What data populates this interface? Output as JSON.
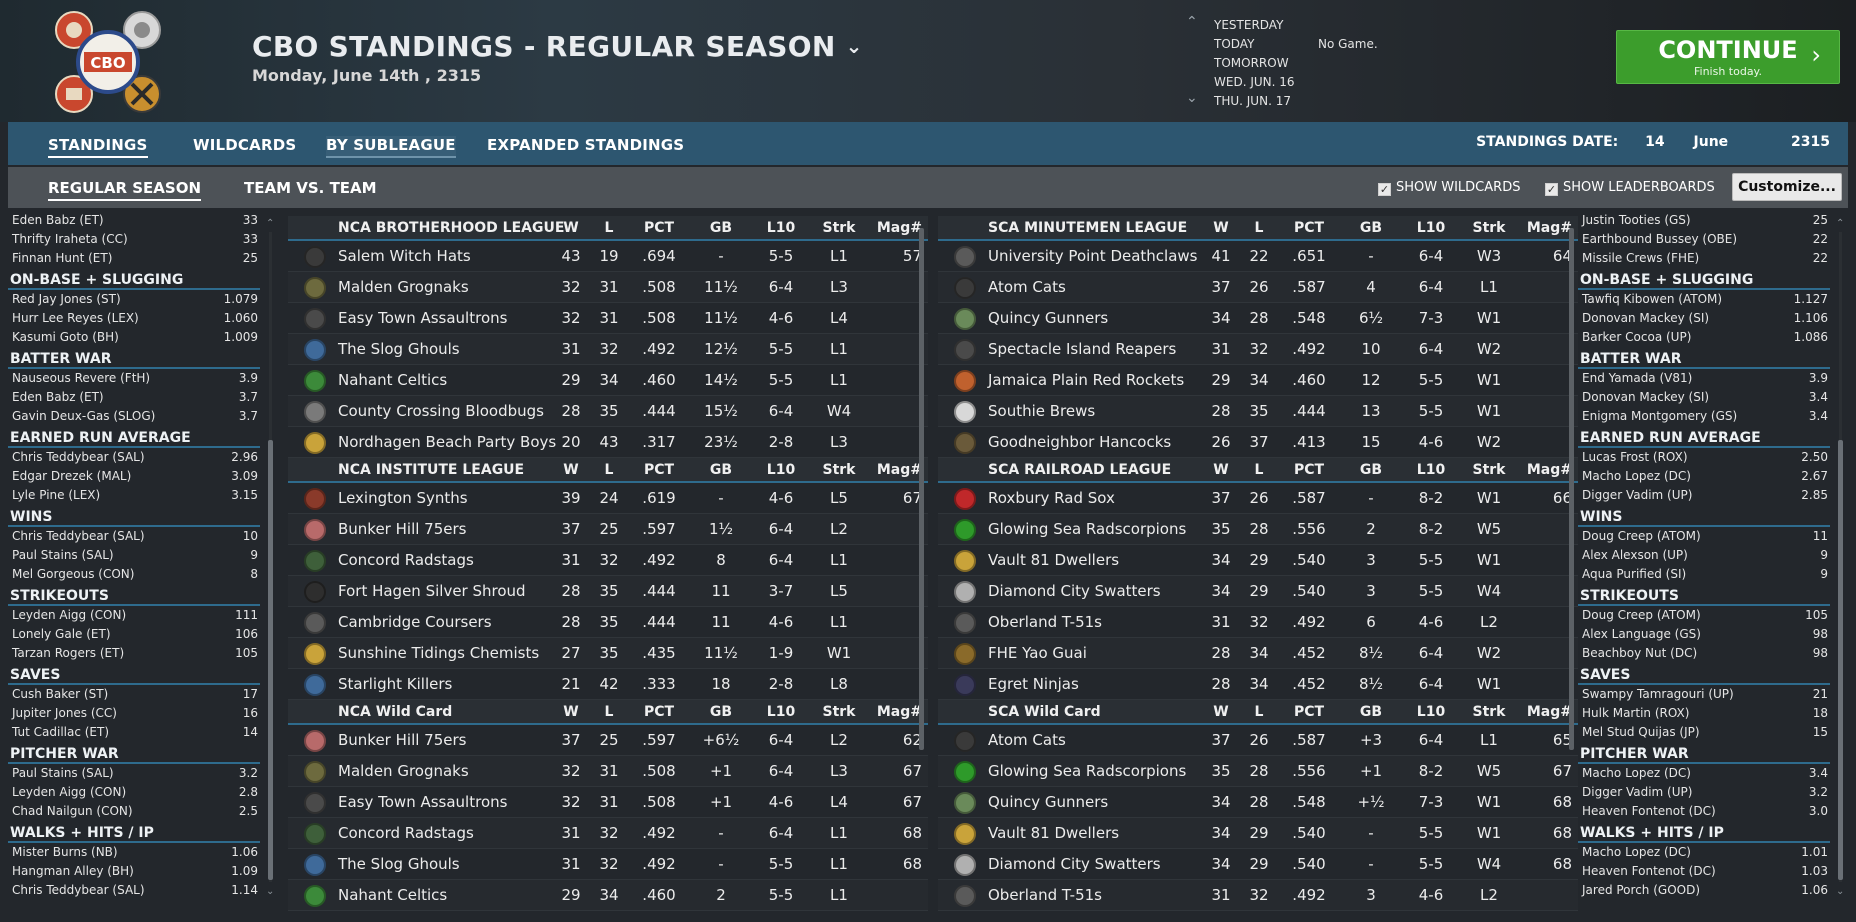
{
  "header": {
    "title": "CBO STANDINGS - REGULAR SEASON",
    "date_line": "Monday, June 14th , 2315",
    "nav_days": [
      "YESTERDAY",
      "TODAY",
      "TOMORROW",
      "WED. JUN. 16",
      "THU. JUN. 17"
    ],
    "no_game": "No Game.",
    "continue_label": "CONTINUE",
    "continue_sub": "Finish today.",
    "logo_text": "CBO"
  },
  "tabs": [
    "STANDINGS",
    "WILDCARDS",
    "BY SUBLEAGUE",
    "EXPANDED STANDINGS"
  ],
  "standings_date": {
    "label": "STANDINGS DATE:",
    "day": "14",
    "month": "June",
    "year": "2315"
  },
  "subtabs": [
    "REGULAR SEASON",
    "TEAM VS. TEAM"
  ],
  "options": {
    "show_wildcards": "SHOW WILDCARDS",
    "show_leaderboards": "SHOW LEADERBOARDS",
    "customize": "Customize..."
  },
  "columns": [
    "W",
    "L",
    "PCT",
    "GB",
    "L10",
    "Strk",
    "Mag#"
  ],
  "left_leaders": [
    {
      "title": "",
      "rows": [
        [
          "Eden Babz (ET)",
          "33"
        ],
        [
          "Thrifty Iraheta (CC)",
          "33"
        ],
        [
          "Finnan Hunt (ET)",
          "25"
        ]
      ]
    },
    {
      "title": "ON-BASE + SLUGGING",
      "rows": [
        [
          "Red Jay Jones (ST)",
          "1.079"
        ],
        [
          "Hurr Lee Reyes (LEX)",
          "1.060"
        ],
        [
          "Kasumi Goto (BH)",
          "1.009"
        ]
      ]
    },
    {
      "title": "BATTER WAR",
      "rows": [
        [
          "Nauseous Revere (FtH)",
          "3.9"
        ],
        [
          "Eden Babz (ET)",
          "3.7"
        ],
        [
          "Gavin Deux-Gas (SLOG)",
          "3.7"
        ]
      ]
    },
    {
      "title": "EARNED RUN AVERAGE",
      "rows": [
        [
          "Chris Teddybear (SAL)",
          "2.96"
        ],
        [
          "Edgar Drezek (MAL)",
          "3.09"
        ],
        [
          "Lyle Pine (LEX)",
          "3.15"
        ]
      ]
    },
    {
      "title": "WINS",
      "rows": [
        [
          "Chris Teddybear (SAL)",
          "10"
        ],
        [
          "Paul Stains (SAL)",
          "9"
        ],
        [
          "Mel Gorgeous (CON)",
          "8"
        ]
      ]
    },
    {
      "title": "STRIKEOUTS",
      "rows": [
        [
          "Leyden Aigg (CON)",
          "111"
        ],
        [
          "Lonely Gale (ET)",
          "106"
        ],
        [
          "Tarzan Rogers (ET)",
          "105"
        ]
      ]
    },
    {
      "title": "SAVES",
      "rows": [
        [
          "Cush Baker (ST)",
          "17"
        ],
        [
          "Jupiter Jones (CC)",
          "16"
        ],
        [
          "Tut Cadillac (ET)",
          "14"
        ]
      ]
    },
    {
      "title": "PITCHER WAR",
      "rows": [
        [
          "Paul Stains (SAL)",
          "3.2"
        ],
        [
          "Leyden Aigg (CON)",
          "2.8"
        ],
        [
          "Chad Nailgun (CON)",
          "2.5"
        ]
      ]
    },
    {
      "title": "WALKS + HITS / IP",
      "rows": [
        [
          "Mister Burns (NB)",
          "1.06"
        ],
        [
          "Hangman Alley (BH)",
          "1.09"
        ],
        [
          "Chris Teddybear (SAL)",
          "1.14"
        ]
      ]
    }
  ],
  "right_leaders": [
    {
      "title": "",
      "rows": [
        [
          "Justin Tooties (GS)",
          "25"
        ],
        [
          "Earthbound Bussey (OBE)",
          "22"
        ],
        [
          "Missile Crews (FHE)",
          "22"
        ]
      ]
    },
    {
      "title": "ON-BASE + SLUGGING",
      "rows": [
        [
          "Tawfiq Kibowen (ATOM)",
          "1.127"
        ],
        [
          "Donovan Mackey (SI)",
          "1.106"
        ],
        [
          "Barker Cocoa (UP)",
          "1.086"
        ]
      ]
    },
    {
      "title": "BATTER WAR",
      "rows": [
        [
          "End Yamada (V81)",
          "3.9"
        ],
        [
          "Donovan Mackey (SI)",
          "3.4"
        ],
        [
          "Enigma Montgomery (GS)",
          "3.4"
        ]
      ]
    },
    {
      "title": "EARNED RUN AVERAGE",
      "rows": [
        [
          "Lucas Frost (ROX)",
          "2.50"
        ],
        [
          "Macho Lopez (DC)",
          "2.67"
        ],
        [
          "Digger Vadim (UP)",
          "2.85"
        ]
      ]
    },
    {
      "title": "WINS",
      "rows": [
        [
          "Doug Creep (ATOM)",
          "11"
        ],
        [
          "Alex Alexson (UP)",
          "9"
        ],
        [
          "Aqua Purified (SI)",
          "9"
        ]
      ]
    },
    {
      "title": "STRIKEOUTS",
      "rows": [
        [
          "Doug Creep (ATOM)",
          "105"
        ],
        [
          "Alex Language (GS)",
          "98"
        ],
        [
          "Beachboy Nut (DC)",
          "98"
        ]
      ]
    },
    {
      "title": "SAVES",
      "rows": [
        [
          "Swampy Tamragouri (UP)",
          "21"
        ],
        [
          "Hulk Martin (ROX)",
          "18"
        ],
        [
          "Mel Stud Quijas (JP)",
          "15"
        ]
      ]
    },
    {
      "title": "PITCHER WAR",
      "rows": [
        [
          "Macho Lopez (DC)",
          "3.4"
        ],
        [
          "Digger Vadim (UP)",
          "3.2"
        ],
        [
          "Heaven Fontenot (DC)",
          "3.0"
        ]
      ]
    },
    {
      "title": "WALKS + HITS / IP",
      "rows": [
        [
          "Macho Lopez (DC)",
          "1.01"
        ],
        [
          "Heaven Fontenot (DC)",
          "1.03"
        ],
        [
          "Jared Porch (GOOD)",
          "1.06"
        ]
      ]
    }
  ],
  "left_tables": [
    {
      "title": "NCA BROTHERHOOD LEAGUE",
      "teams": [
        {
          "name": "Salem Witch Hats",
          "w": "43",
          "l": "19",
          "pct": ".694",
          "gb": "-",
          "l10": "5-5",
          "strk": "L1",
          "mag": "57",
          "color": "#3a3a3a"
        },
        {
          "name": "Malden Grognaks",
          "w": "32",
          "l": "31",
          "pct": ".508",
          "gb": "11½",
          "l10": "6-4",
          "strk": "L3",
          "mag": "",
          "color": "#6d6a3e"
        },
        {
          "name": "Easy Town Assaultrons",
          "w": "32",
          "l": "31",
          "pct": ".508",
          "gb": "11½",
          "l10": "4-6",
          "strk": "L4",
          "mag": "",
          "color": "#4a4a4a"
        },
        {
          "name": "The Slog Ghouls",
          "w": "31",
          "l": "32",
          "pct": ".492",
          "gb": "12½",
          "l10": "5-5",
          "strk": "L1",
          "mag": "",
          "color": "#3f6a9a"
        },
        {
          "name": "Nahant Celtics",
          "w": "29",
          "l": "34",
          "pct": ".460",
          "gb": "14½",
          "l10": "5-5",
          "strk": "L1",
          "mag": "",
          "color": "#3c8a3a"
        },
        {
          "name": "County Crossing Bloodbugs",
          "w": "28",
          "l": "35",
          "pct": ".444",
          "gb": "15½",
          "l10": "6-4",
          "strk": "W4",
          "mag": "",
          "color": "#7a7a7a"
        },
        {
          "name": "Nordhagen Beach Party Boys",
          "w": "20",
          "l": "43",
          "pct": ".317",
          "gb": "23½",
          "l10": "2-8",
          "strk": "L3",
          "mag": "",
          "color": "#c9a33a"
        }
      ]
    },
    {
      "title": "NCA INSTITUTE LEAGUE",
      "teams": [
        {
          "name": "Lexington Synths",
          "w": "39",
          "l": "24",
          "pct": ".619",
          "gb": "-",
          "l10": "4-6",
          "strk": "L5",
          "mag": "67",
          "color": "#8a3a2a"
        },
        {
          "name": "Bunker Hill 75ers",
          "w": "37",
          "l": "25",
          "pct": ".597",
          "gb": "1½",
          "l10": "6-4",
          "strk": "L2",
          "mag": "",
          "color": "#b86a6a"
        },
        {
          "name": "Concord Radstags",
          "w": "31",
          "l": "32",
          "pct": ".492",
          "gb": "8",
          "l10": "6-4",
          "strk": "L1",
          "mag": "",
          "color": "#3e5f3a"
        },
        {
          "name": "Fort Hagen Silver Shroud",
          "w": "28",
          "l": "35",
          "pct": ".444",
          "gb": "11",
          "l10": "3-7",
          "strk": "L5",
          "mag": "",
          "color": "#2e2e2e"
        },
        {
          "name": "Cambridge Coursers",
          "w": "28",
          "l": "35",
          "pct": ".444",
          "gb": "11",
          "l10": "4-6",
          "strk": "L1",
          "mag": "",
          "color": "#5a5a5a"
        },
        {
          "name": "Sunshine Tidings Chemists",
          "w": "27",
          "l": "35",
          "pct": ".435",
          "gb": "11½",
          "l10": "1-9",
          "strk": "W1",
          "mag": "",
          "color": "#c9a33a"
        },
        {
          "name": "Starlight Killers",
          "w": "21",
          "l": "42",
          "pct": ".333",
          "gb": "18",
          "l10": "2-8",
          "strk": "L8",
          "mag": "",
          "color": "#3f6a9a"
        }
      ]
    },
    {
      "title": "NCA  Wild Card",
      "teams": [
        {
          "name": "Bunker Hill 75ers",
          "w": "37",
          "l": "25",
          "pct": ".597",
          "gb": "+6½",
          "l10": "6-4",
          "strk": "L2",
          "mag": "62",
          "color": "#b86a6a"
        },
        {
          "name": "Malden Grognaks",
          "w": "32",
          "l": "31",
          "pct": ".508",
          "gb": "+1",
          "l10": "6-4",
          "strk": "L3",
          "mag": "67",
          "color": "#6d6a3e"
        },
        {
          "name": "Easy Town Assaultrons",
          "w": "32",
          "l": "31",
          "pct": ".508",
          "gb": "+1",
          "l10": "4-6",
          "strk": "L4",
          "mag": "67",
          "color": "#4a4a4a"
        },
        {
          "name": "Concord Radstags",
          "w": "31",
          "l": "32",
          "pct": ".492",
          "gb": "-",
          "l10": "6-4",
          "strk": "L1",
          "mag": "68",
          "color": "#3e5f3a"
        },
        {
          "name": "The Slog Ghouls",
          "w": "31",
          "l": "32",
          "pct": ".492",
          "gb": "-",
          "l10": "5-5",
          "strk": "L1",
          "mag": "68",
          "color": "#3f6a9a"
        },
        {
          "name": "Nahant Celtics",
          "w": "29",
          "l": "34",
          "pct": ".460",
          "gb": "2",
          "l10": "5-5",
          "strk": "L1",
          "mag": "",
          "color": "#3c8a3a"
        }
      ]
    }
  ],
  "right_tables": [
    {
      "title": "SCA MINUTEMEN LEAGUE",
      "teams": [
        {
          "name": "University Point Deathclaws",
          "w": "41",
          "l": "22",
          "pct": ".651",
          "gb": "-",
          "l10": "6-4",
          "strk": "W3",
          "mag": "64",
          "color": "#5a5a5a"
        },
        {
          "name": "Atom Cats",
          "w": "37",
          "l": "26",
          "pct": ".587",
          "gb": "4",
          "l10": "6-4",
          "strk": "L1",
          "mag": "",
          "color": "#3a3a3a"
        },
        {
          "name": "Quincy Gunners",
          "w": "34",
          "l": "28",
          "pct": ".548",
          "gb": "6½",
          "l10": "7-3",
          "strk": "W1",
          "mag": "",
          "color": "#6a8a5a"
        },
        {
          "name": "Spectacle Island Reapers",
          "w": "31",
          "l": "32",
          "pct": ".492",
          "gb": "10",
          "l10": "6-4",
          "strk": "W2",
          "mag": "",
          "color": "#4a4a4a"
        },
        {
          "name": "Jamaica Plain Red Rockets",
          "w": "29",
          "l": "34",
          "pct": ".460",
          "gb": "12",
          "l10": "5-5",
          "strk": "W1",
          "mag": "",
          "color": "#c0612e"
        },
        {
          "name": "Southie Brews",
          "w": "28",
          "l": "35",
          "pct": ".444",
          "gb": "13",
          "l10": "5-5",
          "strk": "W1",
          "mag": "",
          "color": "#d8d8d8"
        },
        {
          "name": "Goodneighbor Hancocks",
          "w": "26",
          "l": "37",
          "pct": ".413",
          "gb": "15",
          "l10": "4-6",
          "strk": "W2",
          "mag": "",
          "color": "#6a5a3a"
        }
      ]
    },
    {
      "title": "SCA RAILROAD LEAGUE",
      "teams": [
        {
          "name": "Roxbury Rad Sox",
          "w": "37",
          "l": "26",
          "pct": ".587",
          "gb": "-",
          "l10": "8-2",
          "strk": "W1",
          "mag": "66",
          "color": "#c0282a"
        },
        {
          "name": "Glowing Sea Radscorpions",
          "w": "35",
          "l": "28",
          "pct": ".556",
          "gb": "2",
          "l10": "8-2",
          "strk": "W5",
          "mag": "",
          "color": "#2e9a2a"
        },
        {
          "name": "Vault 81 Dwellers",
          "w": "34",
          "l": "29",
          "pct": ".540",
          "gb": "3",
          "l10": "5-5",
          "strk": "W1",
          "mag": "",
          "color": "#c9a33a"
        },
        {
          "name": "Diamond City Swatters",
          "w": "34",
          "l": "29",
          "pct": ".540",
          "gb": "3",
          "l10": "5-5",
          "strk": "W4",
          "mag": "",
          "color": "#b0b0b0"
        },
        {
          "name": "Oberland T-51s",
          "w": "31",
          "l": "32",
          "pct": ".492",
          "gb": "6",
          "l10": "4-6",
          "strk": "L2",
          "mag": "",
          "color": "#5a5a5a"
        },
        {
          "name": "FHE Yao Guai",
          "w": "28",
          "l": "34",
          "pct": ".452",
          "gb": "8½",
          "l10": "6-4",
          "strk": "W2",
          "mag": "",
          "color": "#8a6a2a"
        },
        {
          "name": "Egret Ninjas",
          "w": "28",
          "l": "34",
          "pct": ".452",
          "gb": "8½",
          "l10": "6-4",
          "strk": "W1",
          "mag": "",
          "color": "#3a3a5a"
        }
      ]
    },
    {
      "title": "SCA  Wild Card",
      "teams": [
        {
          "name": "Atom Cats",
          "w": "37",
          "l": "26",
          "pct": ".587",
          "gb": "+3",
          "l10": "6-4",
          "strk": "L1",
          "mag": "65",
          "color": "#3a3a3a"
        },
        {
          "name": "Glowing Sea Radscorpions",
          "w": "35",
          "l": "28",
          "pct": ".556",
          "gb": "+1",
          "l10": "8-2",
          "strk": "W5",
          "mag": "67",
          "color": "#2e9a2a"
        },
        {
          "name": "Quincy Gunners",
          "w": "34",
          "l": "28",
          "pct": ".548",
          "gb": "+½",
          "l10": "7-3",
          "strk": "W1",
          "mag": "68",
          "color": "#6a8a5a"
        },
        {
          "name": "Vault 81 Dwellers",
          "w": "34",
          "l": "29",
          "pct": ".540",
          "gb": "-",
          "l10": "5-5",
          "strk": "W1",
          "mag": "68",
          "color": "#c9a33a"
        },
        {
          "name": "Diamond City Swatters",
          "w": "34",
          "l": "29",
          "pct": ".540",
          "gb": "-",
          "l10": "5-5",
          "strk": "W4",
          "mag": "68",
          "color": "#b0b0b0"
        },
        {
          "name": "Oberland T-51s",
          "w": "31",
          "l": "32",
          "pct": ".492",
          "gb": "3",
          "l10": "4-6",
          "strk": "L2",
          "mag": "",
          "color": "#5a5a5a"
        }
      ]
    }
  ]
}
